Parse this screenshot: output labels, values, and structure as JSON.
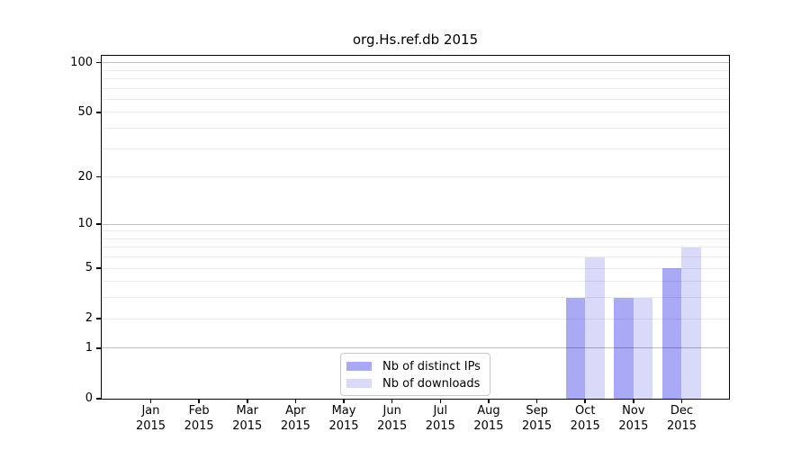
{
  "figure": {
    "title": "org.Hs.ref.db 2015"
  },
  "colors": {
    "distinct_ips_bar": "#a9a9f5",
    "downloads_bar": "#d9daf9",
    "grid_minor": "rgba(0,0,0,0.08)",
    "grid_decade": "rgba(0,0,0,0.25)",
    "spine": "#000000",
    "legend_border": "#c9c9c9",
    "text": "#000000"
  },
  "legend": {
    "items": [
      {
        "label": "Nb of distinct IPs"
      },
      {
        "label": "Nb of downloads"
      }
    ]
  },
  "chart_data": {
    "type": "bar",
    "title": "org.Hs.ref.db 2015",
    "x_categories": [
      "Jan 2015",
      "Feb 2015",
      "Mar 2015",
      "Apr 2015",
      "May 2015",
      "Jun 2015",
      "Jul 2015",
      "Aug 2015",
      "Sep 2015",
      "Oct 2015",
      "Nov 2015",
      "Dec 2015"
    ],
    "series": [
      {
        "name": "Nb of distinct IPs",
        "color": "#a9a9f5",
        "values": [
          0,
          0,
          0,
          0,
          0,
          0,
          0,
          0,
          0,
          3,
          3,
          5
        ]
      },
      {
        "name": "Nb of downloads",
        "color": "#d9daf9",
        "values": [
          0,
          0,
          0,
          0,
          0,
          0,
          0,
          0,
          0,
          6,
          3,
          7
        ]
      }
    ],
    "xlabel": "",
    "ylabel": "",
    "yscale": "log1p",
    "ylim": [
      0,
      110
    ],
    "ytick_labels": [
      0,
      1,
      2,
      5,
      10,
      20,
      50,
      100
    ],
    "minor_gridlines": [
      3,
      4,
      6,
      7,
      8,
      9,
      30,
      40,
      60,
      70,
      80,
      90
    ],
    "grid": true,
    "legend_position": "lower center inside"
  }
}
